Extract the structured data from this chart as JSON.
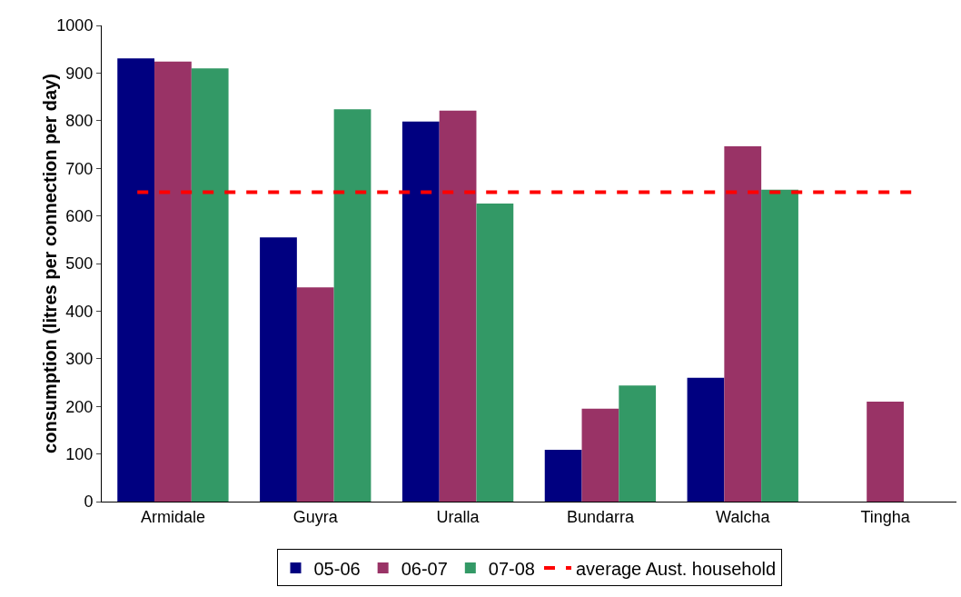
{
  "chart_data": {
    "type": "bar",
    "ylabel": "consumption (litres per connection per day)",
    "categories": [
      "Armidale",
      "Guyra",
      "Uralla",
      "Bundarra",
      "Walcha",
      "Tingha"
    ],
    "series": [
      {
        "name": "05-06",
        "color": "#000080",
        "values": [
          931,
          555,
          798,
          109,
          260,
          null
        ]
      },
      {
        "name": "06-07",
        "color": "#993366",
        "values": [
          924,
          450,
          821,
          195,
          746,
          210
        ]
      },
      {
        "name": "07-08",
        "color": "#339966",
        "values": [
          910,
          824,
          626,
          244,
          655,
          null
        ]
      }
    ],
    "ylim": [
      0,
      1000
    ],
    "yticks": [
      0,
      100,
      200,
      300,
      400,
      500,
      600,
      700,
      800,
      900,
      1000
    ],
    "grid": false,
    "legend": "bottom",
    "ref_lines": [
      {
        "axis": "y",
        "value": 650,
        "label": "average Aust. household",
        "color": "#ff0000",
        "line_style": "dashed"
      }
    ]
  }
}
